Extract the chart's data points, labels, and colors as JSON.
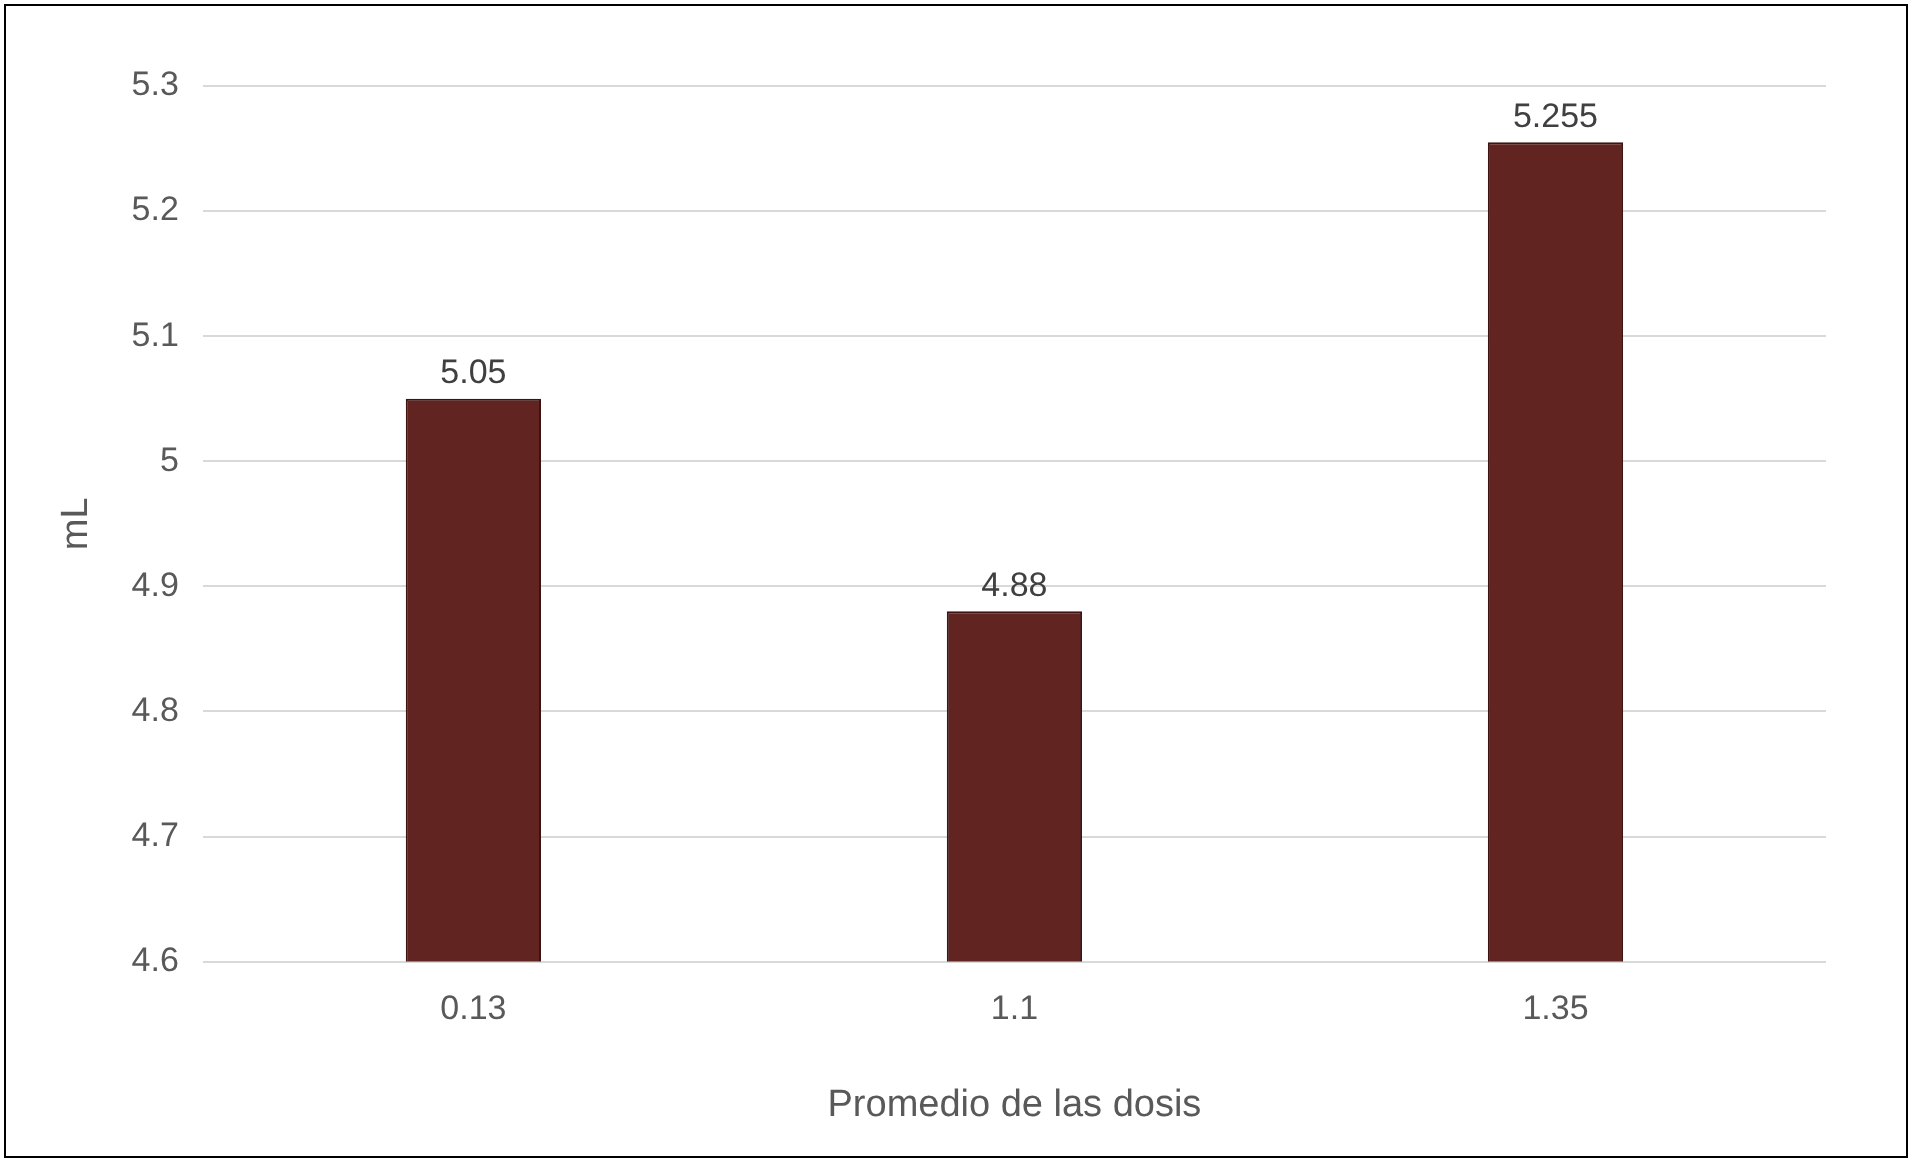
{
  "chart_data": {
    "type": "bar",
    "xlabel": "Promedio de las dosis",
    "ylabel": "mL",
    "categories": [
      "0.13",
      "1.1",
      "1.35"
    ],
    "values": [
      5.05,
      4.88,
      5.255
    ],
    "color": "#622420",
    "ylim": [
      4.6,
      5.3
    ],
    "yticks": [
      4.6,
      4.7,
      4.8,
      4.9,
      5,
      5.1,
      5.2,
      5.3
    ],
    "grid": "y",
    "data_labels": true,
    "legend": false
  }
}
